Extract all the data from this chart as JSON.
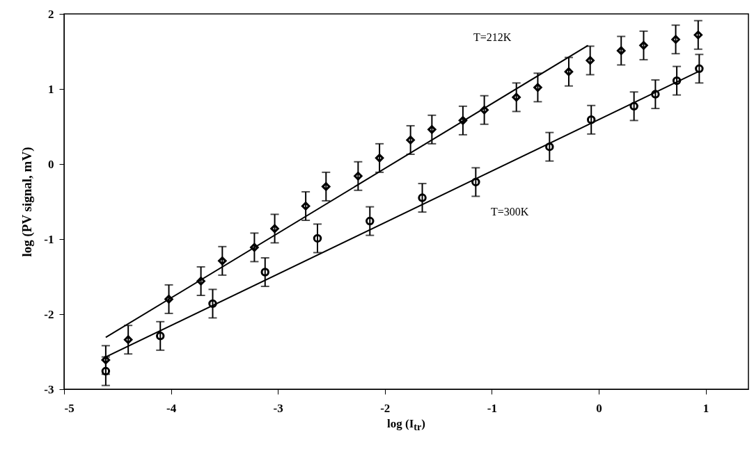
{
  "chart_data": {
    "type": "scatter",
    "xlabel": "log (I$_{tr}$)",
    "ylabel": "log  (PV signal, mV)",
    "xlim": [
      -5,
      1.4
    ],
    "ylim": [
      -3,
      2
    ],
    "xticks": [
      -5,
      -4,
      -3,
      -2,
      -1,
      0,
      1
    ],
    "yticks": [
      -3,
      -2,
      -1,
      0,
      1,
      2
    ],
    "grid": false,
    "annotations": [
      "T=212K",
      "T=300K"
    ],
    "series": [
      {
        "marker": "diamond",
        "color": "#000000",
        "x": [
          -4.61,
          -4.4,
          -4.02,
          -3.72,
          -3.52,
          -3.22,
          -3.03,
          -2.74,
          -2.55,
          -2.25,
          -2.05,
          -1.76,
          -1.56,
          -1.27,
          -1.07,
          -0.77,
          -0.57,
          -0.28,
          -0.08,
          0.21,
          0.42,
          0.72,
          0.93
        ],
        "values": [
          -2.61,
          -2.34,
          -1.8,
          -1.56,
          -1.29,
          -1.11,
          -0.86,
          -0.56,
          -0.3,
          -0.16,
          0.08,
          0.32,
          0.46,
          0.58,
          0.72,
          0.89,
          1.02,
          1.23,
          1.38,
          1.51,
          1.58,
          1.66,
          1.72
        ],
        "errors": [
          0.19,
          0.19,
          0.19,
          0.19,
          0.19,
          0.19,
          0.19,
          0.19,
          0.19,
          0.19,
          0.19,
          0.19,
          0.19,
          0.19,
          0.19,
          0.19,
          0.19,
          0.19,
          0.19,
          0.19,
          0.19,
          0.19,
          0.19
        ]
      },
      {
        "marker": "circle",
        "color": "#000000",
        "x": [
          -4.61,
          -4.1,
          -3.61,
          -3.12,
          -2.63,
          -2.14,
          -1.65,
          -1.15,
          -0.46,
          -0.07,
          0.33,
          0.53,
          0.73,
          0.94
        ],
        "values": [
          -2.76,
          -2.29,
          -1.86,
          -1.44,
          -0.99,
          -0.76,
          -0.45,
          -0.24,
          0.23,
          0.59,
          0.77,
          0.93,
          1.11,
          1.27
        ],
        "errors": [
          0.19,
          0.19,
          0.19,
          0.19,
          0.19,
          0.19,
          0.19,
          0.19,
          0.19,
          0.19,
          0.19,
          0.19,
          0.19,
          0.19
        ]
      },
      {
        "type": "line",
        "marker": "none",
        "line_style": "solid",
        "color": "#000000",
        "x": [
          -4.61,
          -0.1
        ],
        "values": [
          -2.31,
          1.58
        ]
      },
      {
        "type": "line",
        "marker": "none",
        "line_style": "solid",
        "color": "#000000",
        "x": [
          -4.61,
          0.93
        ],
        "values": [
          -2.57,
          1.23
        ]
      }
    ]
  }
}
